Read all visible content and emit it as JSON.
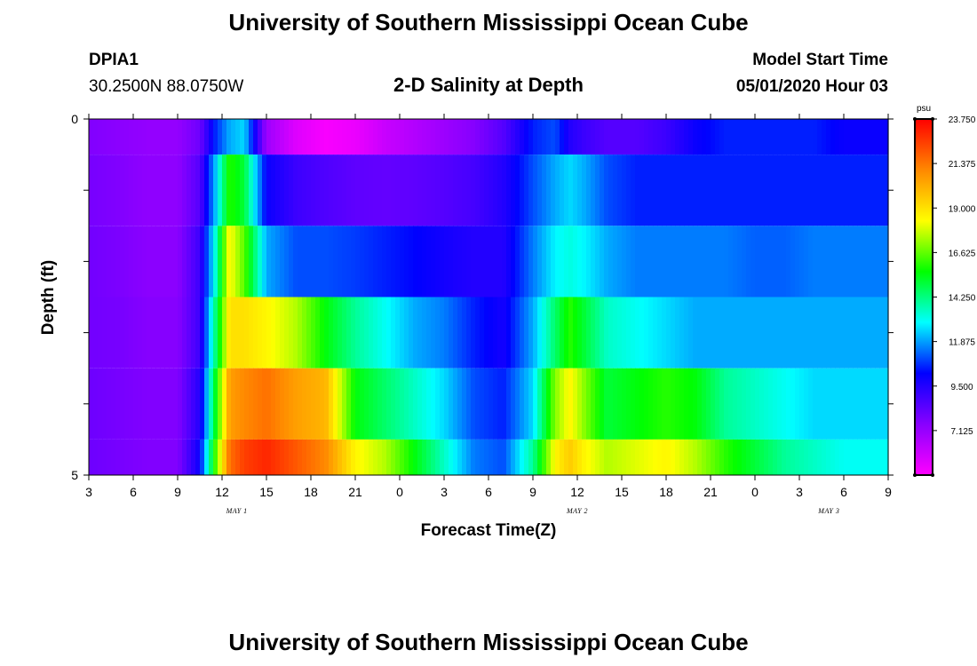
{
  "page": {
    "title_top": "University of Southern Mississippi Ocean Cube",
    "title_bottom": "University of Southern Mississippi Ocean Cube",
    "station_id": "DPIA1",
    "station_coords": "30.2500N 88.0750W",
    "model_start_label": "Model Start Time",
    "model_start_value": "05/01/2020 Hour 03"
  },
  "colors": {
    "stops": [
      "#ff00ff",
      "#8800ff",
      "#0000ff",
      "#00ffff",
      "#00ff00",
      "#ffff00",
      "#ff8800",
      "#ff0000"
    ]
  },
  "chart_data": {
    "type": "heatmap",
    "title": "2-D Salinity at Depth",
    "xlabel": "Forecast Time(Z)",
    "ylabel": "Depth (ft)",
    "x_ticks": [
      "3",
      "6",
      "9",
      "12",
      "15",
      "18",
      "21",
      "0",
      "3",
      "6",
      "9",
      "12",
      "15",
      "18",
      "21",
      "0",
      "3",
      "6",
      "9"
    ],
    "x_range_hours": [
      3,
      57
    ],
    "date_labels": [
      {
        "text": "MAY 1",
        "hour": 13
      },
      {
        "text": "MAY 2",
        "hour": 36
      },
      {
        "text": "MAY 3",
        "hour": 53
      }
    ],
    "y_ticks": [
      "0",
      "5"
    ],
    "ylim": [
      0,
      5
    ],
    "colorbar": {
      "unit": "psu",
      "min": 4.75,
      "max": 23.75,
      "labels": [
        "23.750",
        "21.375",
        "19.000",
        "16.625",
        "14.250",
        "11.875",
        "9.500",
        "7.125"
      ]
    },
    "x_hours": [
      3,
      5,
      7,
      9,
      10.5,
      11.5,
      12.5,
      13.5,
      15,
      17,
      19,
      21,
      23,
      25,
      27,
      29,
      31,
      33,
      34.5,
      35.5,
      36.5,
      38,
      40,
      42,
      44,
      46,
      48,
      50,
      52,
      54,
      56
    ],
    "depth_layers_ft": [
      0.0,
      1.0,
      2.0,
      3.0,
      4.0,
      5.0
    ],
    "salinity_psu": [
      [
        7.6,
        7.4,
        7.2,
        7.2,
        8.0,
        10.5,
        12.0,
        12.5,
        7.0,
        5.5,
        4.9,
        5.2,
        6.0,
        6.5,
        7.0,
        7.5,
        8.5,
        10.5,
        11.0,
        9.5,
        9.0,
        8.5,
        8.5,
        9.0,
        10.0,
        10.5,
        10.5,
        10.5,
        10.5,
        10.0,
        10.0
      ],
      [
        7.8,
        7.6,
        7.3,
        7.3,
        8.5,
        12.0,
        16.0,
        15.0,
        10.0,
        9.0,
        8.6,
        8.3,
        8.2,
        8.3,
        8.5,
        8.8,
        9.5,
        11.0,
        12.0,
        12.5,
        12.0,
        11.0,
        10.5,
        10.5,
        10.5,
        10.5,
        10.5,
        10.5,
        10.5,
        10.5,
        10.5
      ],
      [
        7.9,
        7.7,
        7.4,
        7.4,
        9.0,
        13.0,
        18.5,
        16.5,
        12.0,
        11.0,
        11.0,
        10.8,
        10.5,
        10.2,
        9.8,
        9.5,
        9.5,
        11.5,
        12.8,
        13.2,
        12.8,
        12.0,
        11.5,
        11.5,
        11.5,
        11.5,
        11.2,
        11.2,
        11.5,
        11.5,
        11.5
      ],
      [
        7.9,
        7.8,
        7.5,
        7.5,
        9.0,
        14.0,
        19.0,
        19.0,
        18.5,
        17.5,
        15.5,
        14.0,
        13.0,
        12.0,
        11.5,
        10.5,
        9.8,
        12.0,
        14.5,
        16.0,
        15.0,
        13.5,
        13.0,
        12.5,
        12.0,
        12.0,
        12.0,
        12.0,
        12.0,
        12.0,
        12.0
      ],
      [
        8.0,
        7.8,
        7.6,
        7.6,
        9.5,
        15.0,
        20.5,
        21.0,
        21.5,
        20.5,
        20.0,
        15.5,
        14.5,
        13.5,
        12.5,
        11.0,
        10.5,
        12.5,
        17.0,
        18.5,
        17.0,
        15.0,
        15.5,
        16.0,
        15.5,
        14.0,
        13.5,
        13.0,
        12.5,
        12.5,
        12.5
      ],
      [
        8.0,
        7.8,
        7.6,
        7.6,
        10.0,
        16.0,
        21.5,
        22.5,
        23.0,
        22.0,
        21.0,
        18.5,
        17.5,
        15.5,
        13.5,
        11.5,
        11.0,
        14.0,
        18.5,
        19.5,
        18.5,
        17.5,
        18.0,
        18.5,
        17.5,
        16.0,
        15.0,
        14.0,
        13.5,
        13.0,
        13.0
      ]
    ]
  }
}
